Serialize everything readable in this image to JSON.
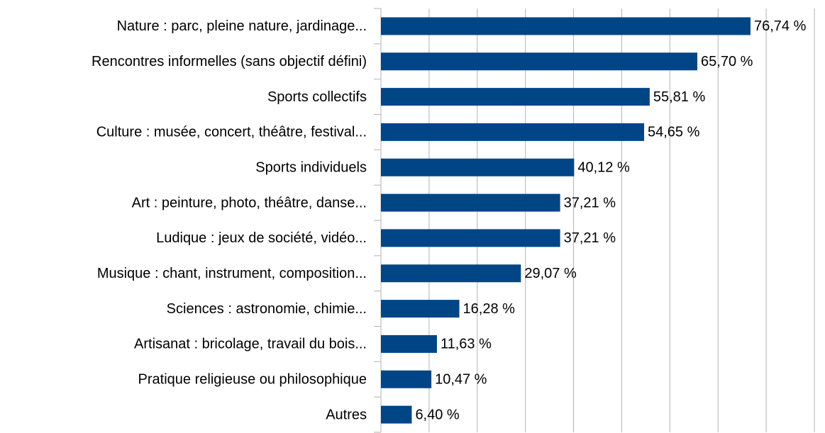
{
  "chart_data": {
    "type": "bar",
    "orientation": "horizontal",
    "categories": [
      "Nature : parc, pleine nature, jardinage...",
      "Rencontres informelles (sans objectif défini)",
      "Sports collectifs",
      "Culture : musée, concert, théâtre, festival...",
      "Sports individuels",
      "Art : peinture, photo, théâtre, danse...",
      "Ludique : jeux de société, vidéo...",
      "Musique : chant, instrument, composition...",
      "Sciences : astronomie, chimie...",
      "Artisanat : bricolage, travail du bois...",
      "Pratique religieuse ou philosophique",
      "Autres"
    ],
    "values": [
      76.74,
      65.7,
      55.81,
      54.65,
      40.12,
      37.21,
      37.21,
      29.07,
      16.28,
      11.63,
      10.47,
      6.4
    ],
    "value_labels": [
      "76,74 %",
      "65,70 %",
      "55,81 %",
      "54,65 %",
      "40,12 %",
      "37,21 %",
      "37,21 %",
      "29,07 %",
      "16,28 %",
      "11,63 %",
      "10,47 %",
      "6,40 %"
    ],
    "color": "#004586",
    "xlim": [
      0,
      90
    ],
    "xticks": [
      0,
      10,
      20,
      30,
      40,
      50,
      60,
      70,
      80,
      90
    ],
    "grid": true
  }
}
